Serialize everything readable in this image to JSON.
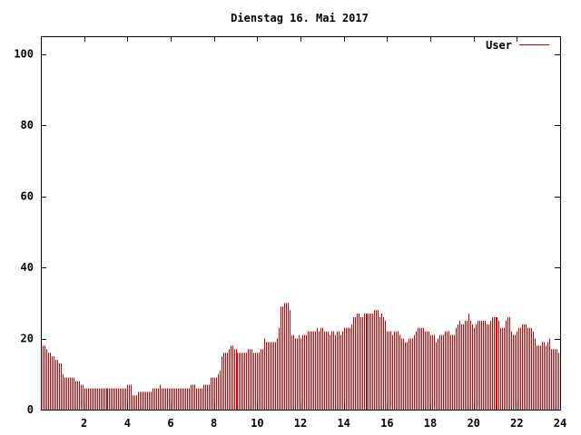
{
  "chart_data": {
    "type": "bar",
    "title": "Dienstag 16. Mai 2017",
    "xlabel": "",
    "ylabel": "",
    "xlim": [
      0,
      24
    ],
    "ylim": [
      0,
      105
    ],
    "x_ticks": [
      {
        "v": 2,
        "label": "2"
      },
      {
        "v": 4,
        "label": "4"
      },
      {
        "v": 6,
        "label": "6"
      },
      {
        "v": 8,
        "label": "8"
      },
      {
        "v": 10,
        "label": "10"
      },
      {
        "v": 12,
        "label": "12"
      },
      {
        "v": 14,
        "label": "14"
      },
      {
        "v": 16,
        "label": "16"
      },
      {
        "v": 18,
        "label": "18"
      },
      {
        "v": 20,
        "label": "20"
      },
      {
        "v": 22,
        "label": "22"
      },
      {
        "v": 24,
        "label": "24"
      }
    ],
    "y_ticks": [
      {
        "v": 0,
        "label": "0"
      },
      {
        "v": 20,
        "label": "20"
      },
      {
        "v": 40,
        "label": "40"
      },
      {
        "v": 60,
        "label": "60"
      },
      {
        "v": 80,
        "label": "80"
      },
      {
        "v": 100,
        "label": "100"
      }
    ],
    "grid": false,
    "legend": "top-right",
    "series": [
      {
        "name": "User",
        "color": "#cc0000",
        "interval_minutes": 5,
        "values": [
          18,
          18,
          18,
          17,
          16,
          16,
          15,
          15,
          14,
          14,
          13,
          13,
          10,
          9,
          9,
          9,
          9,
          9,
          9,
          8,
          8,
          8,
          7,
          7,
          6,
          6,
          6,
          6,
          6,
          6,
          6,
          6,
          6,
          6,
          6,
          6,
          6,
          6,
          6,
          6,
          6,
          6,
          6,
          6,
          6,
          6,
          6,
          6,
          7,
          7,
          7,
          4,
          4,
          4,
          5,
          5,
          5,
          5,
          5,
          5,
          5,
          5,
          6,
          6,
          6,
          6,
          7,
          6,
          6,
          6,
          6,
          6,
          6,
          6,
          6,
          6,
          6,
          6,
          6,
          6,
          6,
          6,
          6,
          7,
          7,
          7,
          6,
          6,
          6,
          6,
          7,
          7,
          7,
          7,
          9,
          9,
          9,
          9,
          10,
          11,
          15,
          16,
          16,
          16,
          17,
          18,
          18,
          17,
          17,
          16,
          16,
          16,
          16,
          16,
          16,
          17,
          17,
          17,
          16,
          16,
          16,
          16,
          17,
          17,
          20,
          19,
          19,
          19,
          19,
          19,
          19,
          20,
          23,
          29,
          29,
          30,
          30,
          30,
          28,
          21,
          21,
          20,
          20,
          21,
          20,
          21,
          21,
          21,
          22,
          22,
          22,
          22,
          22,
          23,
          22,
          23,
          23,
          22,
          22,
          22,
          21,
          22,
          22,
          21,
          22,
          22,
          21,
          22,
          23,
          23,
          23,
          23,
          24,
          26,
          26,
          27,
          27,
          26,
          26,
          27,
          27,
          27,
          27,
          27,
          27,
          28,
          28,
          28,
          26,
          27,
          26,
          25,
          22,
          22,
          22,
          21,
          22,
          22,
          22,
          21,
          20,
          20,
          19,
          19,
          20,
          20,
          20,
          21,
          22,
          23,
          23,
          23,
          23,
          22,
          22,
          22,
          21,
          21,
          21,
          19,
          20,
          21,
          21,
          21,
          22,
          22,
          22,
          21,
          21,
          21,
          23,
          24,
          25,
          24,
          24,
          25,
          25,
          27,
          25,
          24,
          23,
          24,
          25,
          25,
          25,
          25,
          25,
          24,
          24,
          25,
          26,
          26,
          26,
          26,
          25,
          23,
          23,
          23,
          25,
          26,
          26,
          22,
          21,
          21,
          22,
          23,
          23,
          24,
          24,
          24,
          23,
          23,
          23,
          22,
          20,
          18,
          18,
          18,
          19,
          19,
          18,
          19,
          20,
          17,
          17,
          17,
          17,
          16
        ]
      }
    ]
  }
}
